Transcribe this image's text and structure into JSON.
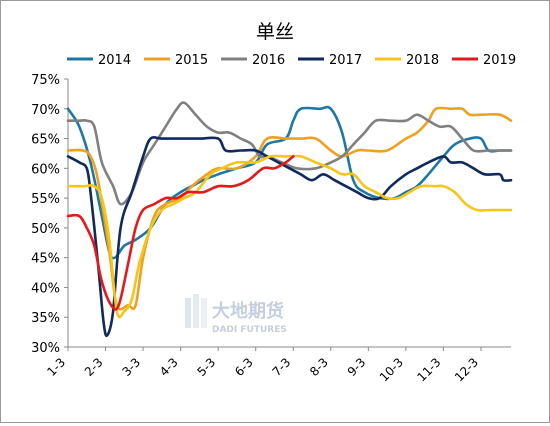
{
  "chart_data": {
    "type": "line",
    "title": "单丝",
    "categories": [
      "1-3",
      "2-3",
      "3-3",
      "4-3",
      "5-3",
      "6-3",
      "7-3",
      "8-3",
      "9-3",
      "10-3",
      "11-3",
      "12-3"
    ],
    "yticks": [
      "75%",
      "70%",
      "65%",
      "60%",
      "55%",
      "50%",
      "45%",
      "40%",
      "35%",
      "30%"
    ],
    "ylim": [
      30,
      75
    ],
    "xlim": [
      1,
      12.8
    ],
    "grid": false,
    "legend_position": "top",
    "watermark": {
      "cn": "大地期货",
      "en": "DADI FUTURES"
    },
    "series": [
      {
        "name": "2014",
        "color": "#1f77a4",
        "points": [
          [
            1.0,
            70
          ],
          [
            1.3,
            67
          ],
          [
            1.6,
            61
          ],
          [
            1.9,
            52
          ],
          [
            2.1,
            46
          ],
          [
            2.25,
            45
          ],
          [
            2.5,
            47
          ],
          [
            2.8,
            48
          ],
          [
            3.2,
            50
          ],
          [
            3.6,
            54
          ],
          [
            4.0,
            56
          ],
          [
            4.3,
            57
          ],
          [
            4.6,
            58
          ],
          [
            5.0,
            59
          ],
          [
            5.5,
            60
          ],
          [
            6.0,
            61
          ],
          [
            6.3,
            64
          ],
          [
            6.8,
            65
          ],
          [
            7.0,
            68
          ],
          [
            7.2,
            70
          ],
          [
            7.7,
            70
          ],
          [
            8.0,
            70
          ],
          [
            8.3,
            66
          ],
          [
            8.6,
            58
          ],
          [
            8.9,
            56
          ],
          [
            9.3,
            55
          ],
          [
            9.7,
            55
          ],
          [
            10.0,
            56
          ],
          [
            10.3,
            57
          ],
          [
            10.6,
            59
          ],
          [
            11.0,
            62
          ],
          [
            11.3,
            64
          ],
          [
            11.7,
            65
          ],
          [
            12.0,
            65
          ],
          [
            12.2,
            63
          ],
          [
            12.5,
            63
          ],
          [
            12.8,
            63
          ]
        ]
      },
      {
        "name": "2015",
        "color": "#f0a020",
        "points": [
          [
            1.0,
            63
          ],
          [
            1.4,
            63
          ],
          [
            1.6,
            62
          ],
          [
            1.8,
            58
          ],
          [
            2.1,
            46
          ],
          [
            2.3,
            37
          ],
          [
            2.6,
            37
          ],
          [
            2.8,
            37
          ],
          [
            3.0,
            45
          ],
          [
            3.3,
            52
          ],
          [
            3.6,
            54
          ],
          [
            4.0,
            55
          ],
          [
            4.3,
            57
          ],
          [
            4.7,
            59
          ],
          [
            5.0,
            60
          ],
          [
            5.5,
            60
          ],
          [
            6.0,
            62
          ],
          [
            6.3,
            65
          ],
          [
            6.8,
            65
          ],
          [
            7.2,
            65
          ],
          [
            7.6,
            65
          ],
          [
            8.0,
            63
          ],
          [
            8.3,
            62
          ],
          [
            8.7,
            63
          ],
          [
            9.0,
            63
          ],
          [
            9.5,
            63
          ],
          [
            10.0,
            65
          ],
          [
            10.3,
            66
          ],
          [
            10.6,
            68
          ],
          [
            10.8,
            70
          ],
          [
            11.2,
            70
          ],
          [
            11.5,
            70
          ],
          [
            11.7,
            69
          ],
          [
            12.0,
            69
          ],
          [
            12.5,
            69
          ],
          [
            12.8,
            68
          ]
        ]
      },
      {
        "name": "2016",
        "color": "#808080",
        "points": [
          [
            1.0,
            68
          ],
          [
            1.3,
            68
          ],
          [
            1.5,
            68
          ],
          [
            1.7,
            67
          ],
          [
            1.9,
            61
          ],
          [
            2.2,
            57
          ],
          [
            2.4,
            54
          ],
          [
            2.7,
            56
          ],
          [
            3.0,
            61
          ],
          [
            3.3,
            64
          ],
          [
            3.6,
            67
          ],
          [
            3.9,
            70
          ],
          [
            4.1,
            71
          ],
          [
            4.4,
            69
          ],
          [
            4.7,
            67
          ],
          [
            5.0,
            66
          ],
          [
            5.3,
            66
          ],
          [
            5.6,
            65
          ],
          [
            5.9,
            64
          ],
          [
            6.1,
            62
          ],
          [
            6.3,
            62
          ],
          [
            6.7,
            61
          ],
          [
            7.1,
            60
          ],
          [
            7.6,
            60
          ],
          [
            8.0,
            61
          ],
          [
            8.3,
            62
          ],
          [
            8.6,
            64
          ],
          [
            8.9,
            66
          ],
          [
            9.2,
            68
          ],
          [
            9.6,
            68
          ],
          [
            10.0,
            68
          ],
          [
            10.3,
            69
          ],
          [
            10.6,
            68
          ],
          [
            10.9,
            67
          ],
          [
            11.2,
            67
          ],
          [
            11.5,
            65
          ],
          [
            11.8,
            63
          ],
          [
            12.2,
            63
          ],
          [
            12.5,
            63
          ],
          [
            12.8,
            63
          ]
        ]
      },
      {
        "name": "2017",
        "color": "#102a5c",
        "points": [
          [
            1.0,
            62
          ],
          [
            1.3,
            61
          ],
          [
            1.5,
            60
          ],
          [
            1.6,
            56
          ],
          [
            1.8,
            44
          ],
          [
            1.95,
            34
          ],
          [
            2.05,
            32
          ],
          [
            2.2,
            36
          ],
          [
            2.4,
            50
          ],
          [
            2.7,
            56
          ],
          [
            3.0,
            62
          ],
          [
            3.2,
            65
          ],
          [
            3.5,
            65
          ],
          [
            4.0,
            65
          ],
          [
            4.5,
            65
          ],
          [
            5.0,
            65
          ],
          [
            5.2,
            63
          ],
          [
            5.6,
            63
          ],
          [
            6.0,
            63
          ],
          [
            6.3,
            62
          ],
          [
            6.6,
            61
          ],
          [
            6.9,
            60
          ],
          [
            7.2,
            59
          ],
          [
            7.5,
            58
          ],
          [
            7.8,
            59
          ],
          [
            8.1,
            58
          ],
          [
            8.4,
            57
          ],
          [
            8.7,
            56
          ],
          [
            9.0,
            55
          ],
          [
            9.3,
            55
          ],
          [
            9.6,
            57
          ],
          [
            10.0,
            59
          ],
          [
            10.3,
            60
          ],
          [
            10.6,
            61
          ],
          [
            11.0,
            62
          ],
          [
            11.2,
            61
          ],
          [
            11.5,
            61
          ],
          [
            11.8,
            60
          ],
          [
            12.1,
            59
          ],
          [
            12.5,
            59
          ],
          [
            12.6,
            58
          ],
          [
            12.8,
            58
          ]
        ]
      },
      {
        "name": "2018",
        "color": "#f5c518",
        "points": [
          [
            1.0,
            57
          ],
          [
            1.4,
            57
          ],
          [
            1.7,
            57
          ],
          [
            1.9,
            55
          ],
          [
            2.1,
            48
          ],
          [
            2.3,
            36
          ],
          [
            2.5,
            36
          ],
          [
            2.7,
            38
          ],
          [
            2.9,
            44
          ],
          [
            3.2,
            50
          ],
          [
            3.5,
            53
          ],
          [
            3.8,
            54
          ],
          [
            4.1,
            55
          ],
          [
            4.4,
            56
          ],
          [
            4.8,
            59
          ],
          [
            5.1,
            60
          ],
          [
            5.5,
            61
          ],
          [
            6.0,
            61
          ],
          [
            6.4,
            62
          ],
          [
            6.8,
            62
          ],
          [
            7.2,
            62
          ],
          [
            7.6,
            61
          ],
          [
            8.0,
            60
          ],
          [
            8.3,
            59
          ],
          [
            8.6,
            59
          ],
          [
            8.9,
            57
          ],
          [
            9.2,
            56
          ],
          [
            9.5,
            55
          ],
          [
            9.8,
            55
          ],
          [
            10.1,
            56
          ],
          [
            10.4,
            57
          ],
          [
            10.8,
            57
          ],
          [
            11.0,
            57
          ],
          [
            11.3,
            56
          ],
          [
            11.6,
            54
          ],
          [
            11.9,
            53
          ],
          [
            12.3,
            53
          ],
          [
            12.8,
            53
          ]
        ]
      },
      {
        "name": "2019",
        "color": "#e31a1c",
        "points": [
          [
            1.0,
            52
          ],
          [
            1.3,
            52
          ],
          [
            1.5,
            50
          ],
          [
            1.7,
            47
          ],
          [
            1.9,
            41
          ],
          [
            2.15,
            37
          ],
          [
            2.35,
            37
          ],
          [
            2.6,
            44
          ],
          [
            2.8,
            50
          ],
          [
            3.0,
            53
          ],
          [
            3.3,
            54
          ],
          [
            3.6,
            55
          ],
          [
            3.9,
            55
          ],
          [
            4.2,
            56
          ],
          [
            4.6,
            56
          ],
          [
            5.0,
            57
          ],
          [
            5.4,
            57
          ],
          [
            5.8,
            58
          ],
          [
            6.2,
            60
          ],
          [
            6.5,
            60
          ],
          [
            6.8,
            61
          ],
          [
            7.0,
            62
          ]
        ]
      }
    ]
  }
}
